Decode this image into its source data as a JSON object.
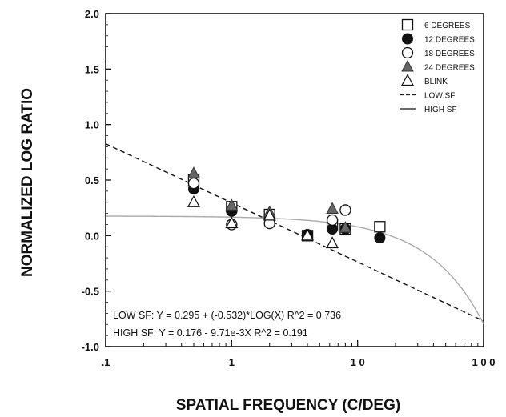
{
  "chart_data": {
    "type": "scatter",
    "title": "",
    "xlabel": "SPATIAL FREQUENCY (C/DEG)",
    "ylabel": "NORMALIZED LOG RATIO",
    "x_scale": "log",
    "xlim": [
      0.1,
      100
    ],
    "ylim": [
      -1.0,
      2.0
    ],
    "x_ticks": [
      {
        "value": 0.1,
        "label": ".1"
      },
      {
        "value": 1,
        "label": "1"
      },
      {
        "value": 10,
        "label": "1 0"
      },
      {
        "value": 100,
        "label": "1 0 0"
      }
    ],
    "y_ticks": [
      {
        "value": 2.0,
        "label": "2.0"
      },
      {
        "value": 1.5,
        "label": "1.5"
      },
      {
        "value": 1.0,
        "label": "1.0"
      },
      {
        "value": 0.5,
        "label": "0.5"
      },
      {
        "value": 0.0,
        "label": "0.0"
      },
      {
        "value": -0.5,
        "label": "-0.5"
      },
      {
        "value": -1.0,
        "label": "-1.0"
      }
    ],
    "grid": false,
    "legend_position": "top-right",
    "series": [
      {
        "name": "6 DEGREES",
        "marker": "square-open",
        "points": [
          [
            0.5,
            0.5
          ],
          [
            1.0,
            0.26
          ],
          [
            2.0,
            0.19
          ],
          [
            4.0,
            0.0
          ],
          [
            6.3,
            0.1
          ],
          [
            8.0,
            0.06
          ],
          [
            15.0,
            0.08
          ]
        ]
      },
      {
        "name": "12 DEGREES",
        "marker": "circle-filled",
        "points": [
          [
            0.5,
            0.42
          ],
          [
            1.0,
            0.22
          ],
          [
            2.0,
            0.16
          ],
          [
            4.0,
            0.01
          ],
          [
            6.3,
            0.06
          ],
          [
            8.0,
            0.06
          ],
          [
            15.0,
            -0.02
          ]
        ]
      },
      {
        "name": "18 DEGREES",
        "marker": "circle-open",
        "points": [
          [
            0.5,
            0.47
          ],
          [
            1.0,
            0.1
          ],
          [
            2.0,
            0.11
          ],
          [
            6.3,
            0.14
          ],
          [
            8.0,
            0.23
          ]
        ]
      },
      {
        "name": "24 DEGREES",
        "marker": "triangle-filled",
        "points": [
          [
            0.5,
            0.56
          ],
          [
            1.0,
            0.27
          ],
          [
            2.0,
            0.21
          ],
          [
            6.3,
            0.24
          ],
          [
            8.0,
            0.07
          ]
        ]
      },
      {
        "name": "BLINK",
        "marker": "triangle-open",
        "points": [
          [
            0.5,
            0.3
          ],
          [
            1.0,
            0.11
          ],
          [
            2.0,
            0.18
          ],
          [
            4.0,
            0.0
          ],
          [
            6.3,
            -0.07
          ]
        ]
      }
    ],
    "fits": [
      {
        "name": "LOW SF",
        "style": "dashed",
        "intercept": 0.295,
        "log_slope": -0.532,
        "equation": "LOW SF: Y = 0.295 + (-0.532)*LOG(X) R^2 = 0.736"
      },
      {
        "name": "HIGH SF",
        "style": "solid",
        "intercept": 0.176,
        "linear_slope": -0.00971,
        "equation": "HIGH SF: Y = 0.176 - 9.71e-3X R^2 = 0.191"
      }
    ],
    "colors": {
      "axis": "#111111",
      "marker": "#111111",
      "triangle_fill": "#666666",
      "high_sf_line": "#aaaaaa"
    }
  }
}
